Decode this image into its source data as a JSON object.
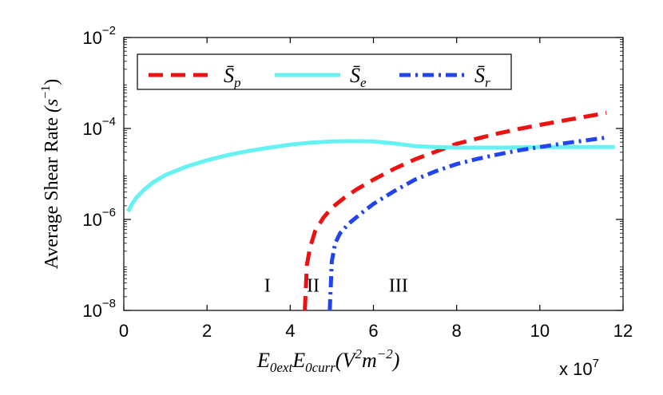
{
  "chart_data": {
    "type": "line",
    "title": "",
    "ylabel": {
      "main": "Average Shear Rate",
      "unit_open": "(s",
      "unit_exp": "−1",
      "unit_close": ")"
    },
    "xlabel": {
      "E": "E",
      "sub1": "0ext",
      "sub2": "0curr",
      "open": "(V",
      "exp1": "2",
      "m": "m",
      "exp2": "−2",
      "close": ")"
    },
    "x_multiplier": {
      "text": "x 10",
      "exp": "7"
    },
    "xlim": [
      0,
      12
    ],
    "ylim_log10": [
      -8,
      -2
    ],
    "y_scale": "log",
    "grid": false,
    "x_ticks": [
      0,
      2,
      4,
      6,
      8,
      10,
      12
    ],
    "y_ticks": [
      {
        "value": -8,
        "base": "10",
        "exp": "−8"
      },
      {
        "value": -6,
        "base": "10",
        "exp": "−6"
      },
      {
        "value": -4,
        "base": "10",
        "exp": "−4"
      },
      {
        "value": -2,
        "base": "10",
        "exp": "−2"
      }
    ],
    "legend": {
      "placement": "top-left"
    },
    "series": [
      {
        "name": "S̄p",
        "legend_main": "S̄",
        "legend_sub": "p",
        "color": "#ee1111",
        "style": "dashed",
        "x": [
          4.35,
          4.4,
          4.48,
          4.6,
          4.8,
          5.0,
          5.3,
          5.6,
          6.0,
          6.5,
          7.0,
          7.5,
          8.0,
          8.5,
          9.0,
          9.5,
          10.0,
          10.5,
          11.0,
          11.6
        ],
        "y": [
          1e-08,
          1e-07,
          2.5e-07,
          5.6e-07,
          1.1e-06,
          1.8e-06,
          3e-06,
          4.6e-06,
          7.5e-06,
          1.3e-05,
          2.1e-05,
          3.1e-05,
          4.6e-05,
          6e-05,
          7.8e-05,
          9.8e-05,
          0.00012,
          0.000145,
          0.000175,
          0.00022
        ]
      },
      {
        "name": "S̄e",
        "legend_main": "S̄",
        "legend_sub": "e",
        "color": "#66f2f2",
        "style": "solid",
        "x": [
          0.1,
          0.2,
          0.3,
          0.5,
          0.7,
          1.0,
          1.5,
          2.0,
          2.5,
          3.0,
          3.5,
          4.0,
          4.5,
          5.0,
          5.5,
          6.0,
          6.5,
          7.0,
          7.5,
          8.0,
          9.0,
          10.0,
          11.0,
          11.8
        ],
        "y": [
          1.5e-06,
          2.2e-06,
          3e-06,
          4.6e-06,
          6.5e-06,
          9.5e-06,
          1.45e-05,
          2e-05,
          2.6e-05,
          3.2e-05,
          3.8e-05,
          4.4e-05,
          4.9e-05,
          5.2e-05,
          5.3e-05,
          5.2e-05,
          4.7e-05,
          4.1e-05,
          3.9e-05,
          3.8e-05,
          3.8e-05,
          3.9e-05,
          3.9e-05,
          3.9e-05
        ]
      },
      {
        "name": "S̄r",
        "legend_main": "S̄",
        "legend_sub": "r",
        "color": "#2244ee",
        "style": "dashdot",
        "x": [
          4.95,
          5.0,
          5.08,
          5.2,
          5.4,
          5.7,
          6.0,
          6.5,
          7.0,
          7.5,
          8.0,
          8.5,
          9.0,
          9.5,
          10.0,
          10.5,
          11.0,
          11.6
        ],
        "y": [
          1e-08,
          1.2e-07,
          3e-07,
          5e-07,
          8e-07,
          1.35e-06,
          2.2e-06,
          4.2e-06,
          7.5e-06,
          1.15e-05,
          1.65e-05,
          2.15e-05,
          2.7e-05,
          3.3e-05,
          3.9e-05,
          4.6e-05,
          5.3e-05,
          6.3e-05
        ]
      }
    ],
    "annotations": [
      {
        "text": "I",
        "x": 3.45,
        "y_log10": -7.45
      },
      {
        "text": "II",
        "x": 4.55,
        "y_log10": -7.45
      },
      {
        "text": "III",
        "x": 6.6,
        "y_log10": -7.45
      }
    ]
  }
}
